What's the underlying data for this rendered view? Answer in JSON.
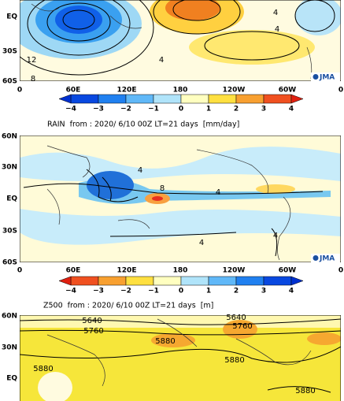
{
  "panels": [
    {
      "lat_labels": [
        "EQ",
        "30S",
        "60S"
      ],
      "lon_labels": [
        "0",
        "60E",
        "120E",
        "180",
        "120W",
        "60W",
        "0"
      ],
      "contour_labels": [
        "12",
        "8",
        "4",
        "4",
        "4"
      ],
      "colorbar_labels": [
        "−4",
        "−3",
        "−2",
        "−1",
        "0",
        "1",
        "2",
        "3",
        "4"
      ],
      "logo": "JMA"
    },
    {
      "title": "RAIN  from : 2020/ 6/10 00Z LT=21 days  [mm/day]",
      "lat_labels": [
        "60N",
        "30N",
        "EQ",
        "30S",
        "60S"
      ],
      "lon_labels": [
        "0",
        "60E",
        "120E",
        "180",
        "120W",
        "60W",
        "0"
      ],
      "contour_labels": [
        "4",
        "8",
        "4",
        "4",
        "4"
      ],
      "colorbar_labels": [
        "−4",
        "−3",
        "−2",
        "−1",
        "0",
        "1",
        "2",
        "3",
        "4"
      ],
      "logo": "JMA"
    },
    {
      "title": "Z500  from : 2020/ 6/10 00Z LT=21 days  [m]",
      "lat_labels": [
        "60N",
        "30N",
        "EQ"
      ],
      "contour_labels": [
        "5640",
        "5760",
        "5880",
        "5880",
        "5880",
        "5640",
        "5760",
        "5880"
      ]
    }
  ]
}
